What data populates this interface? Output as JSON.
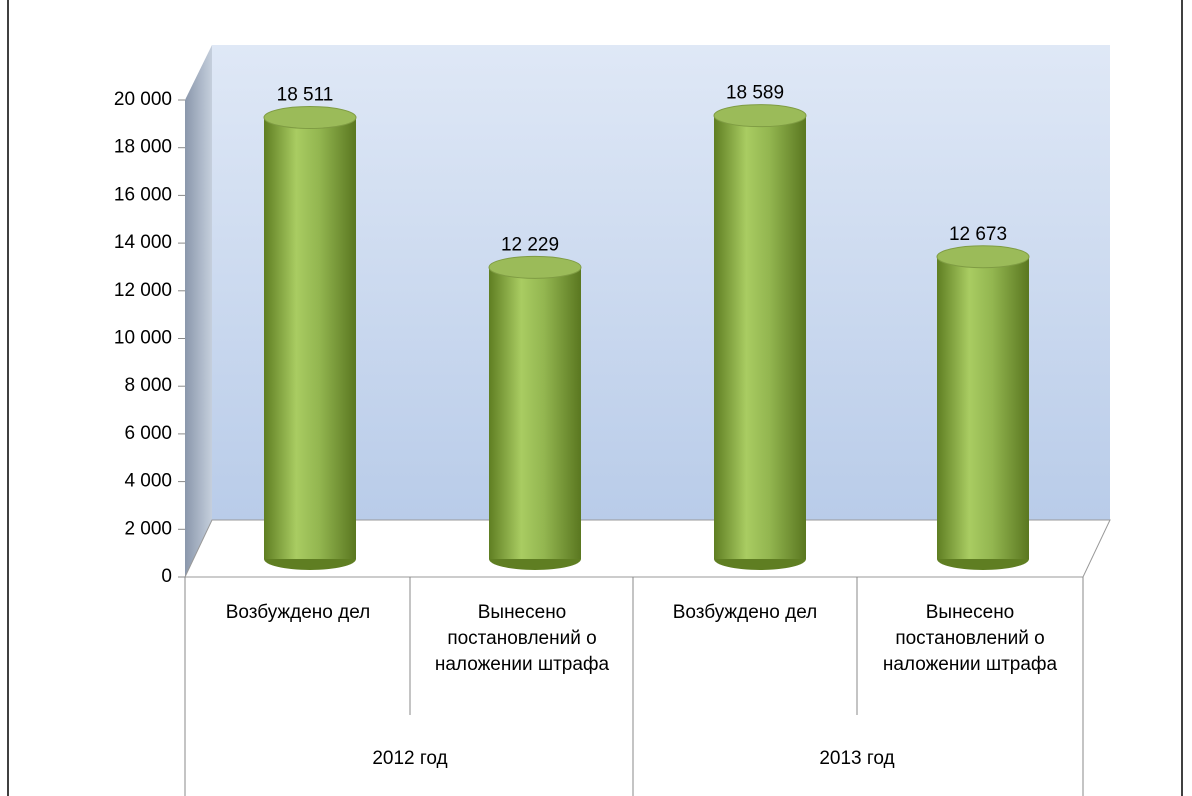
{
  "chart_data": {
    "type": "bar",
    "categories": [
      "Возбуждено дел",
      "Вынесено постановлений о наложении штрафа",
      "Возбуждено дел",
      "Вынесено постановлений о наложении штрафа"
    ],
    "groups": [
      "2012 год",
      "2013 год"
    ],
    "values": [
      18511,
      12229,
      18589,
      12673
    ],
    "value_labels": [
      "18 511",
      "12 229",
      "18 589",
      "12 673"
    ],
    "color": "#9bbb59",
    "ylim": [
      0,
      20000
    ],
    "yticks": [
      0,
      {
        "value": 2000,
        "label": "2 000"
      },
      {
        "value": 4000,
        "label": "4 000"
      },
      {
        "value": 6000,
        "label": "6 000"
      },
      {
        "value": 8000,
        "label": "8 000"
      },
      {
        "value": 10000,
        "label": "10 000"
      },
      {
        "value": 12000,
        "label": "12 000"
      },
      {
        "value": 14000,
        "label": "14 000"
      },
      {
        "value": 16000,
        "label": "16 000"
      },
      {
        "value": 18000,
        "label": "18 000"
      },
      {
        "value": 20000,
        "label": "20 000"
      }
    ]
  }
}
